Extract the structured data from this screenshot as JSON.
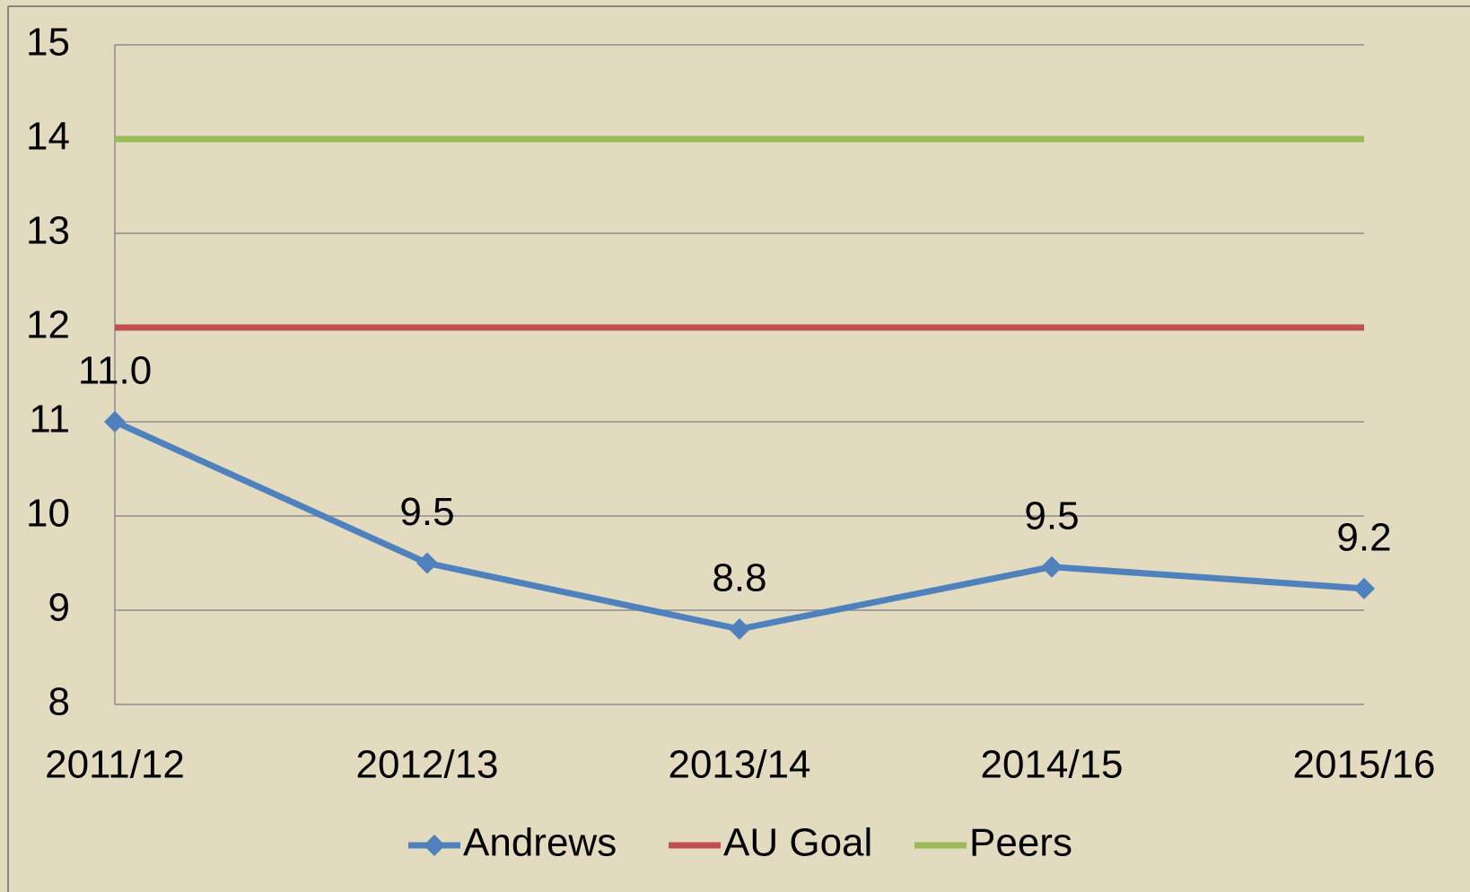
{
  "chart_data": {
    "type": "line",
    "categories": [
      "2011/12",
      "2012/13",
      "2013/14",
      "2014/15",
      "2015/16"
    ],
    "series": [
      {
        "name": "Andrews",
        "color": "#4f81bd",
        "marker": "diamond",
        "values": [
          11.0,
          9.5,
          8.8,
          9.46,
          9.23
        ],
        "value_labels": [
          "11.0",
          "9.5",
          "8.8",
          "9.5",
          "9.2"
        ]
      },
      {
        "name": "AU Goal",
        "color": "#c0504d",
        "values": [
          12,
          12,
          12,
          12,
          12
        ]
      },
      {
        "name": "Peers",
        "color": "#9bbb59",
        "values": [
          14,
          14,
          14,
          14,
          14
        ]
      }
    ],
    "ylim": [
      8,
      15
    ],
    "yticks": [
      8,
      9,
      10,
      11,
      12,
      13,
      14,
      15
    ],
    "grid": true,
    "legend": "bottom"
  }
}
